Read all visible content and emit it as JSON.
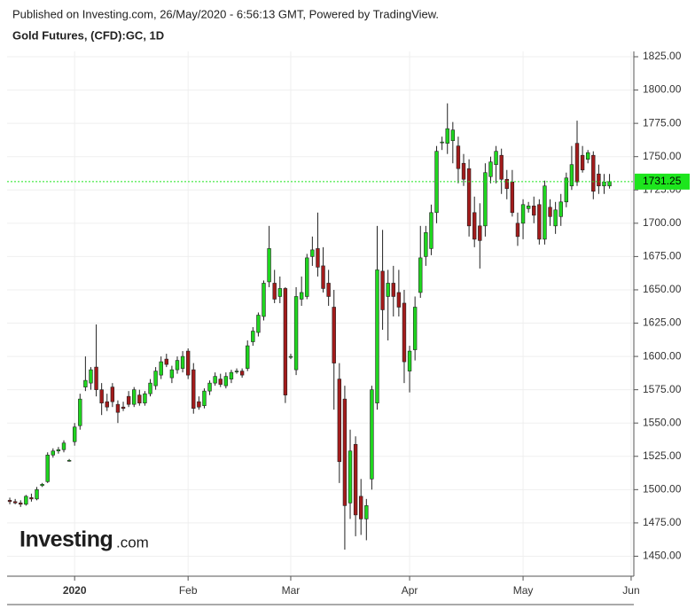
{
  "header": {
    "published": "Published on Investing.com, 26/May/2020 - 6:56:13 GMT, Powered by TradingView.",
    "title": "Gold Futures, (CFD):GC, 1D"
  },
  "watermark": {
    "brand": "Investing",
    "suffix": ".com"
  },
  "chart_data": {
    "type": "candlestick",
    "categories": [
      null,
      null,
      null,
      null,
      null,
      null,
      null,
      null,
      null,
      null,
      null,
      null,
      "2020",
      null,
      null,
      null,
      null,
      null,
      null,
      null,
      null,
      null,
      null,
      null,
      null,
      null,
      null,
      null,
      null,
      null,
      null,
      null,
      null,
      "Feb",
      null,
      null,
      null,
      null,
      null,
      null,
      null,
      null,
      null,
      null,
      null,
      null,
      null,
      null,
      null,
      null,
      null,
      null,
      "Mar",
      null,
      null,
      null,
      null,
      null,
      null,
      null,
      null,
      null,
      null,
      null,
      null,
      null,
      null,
      null,
      null,
      null,
      null,
      null,
      null,
      null,
      "Apr",
      null,
      null,
      null,
      null,
      null,
      null,
      null,
      null,
      null,
      null,
      null,
      null,
      null,
      null,
      null,
      null,
      null,
      null,
      null,
      null,
      "May",
      null,
      null,
      null,
      null,
      null,
      null,
      null,
      null,
      null,
      null,
      null,
      null,
      null,
      null,
      null,
      null,
      null,
      null,
      null,
      "Jun"
    ],
    "open": [
      1492,
      1491,
      1490,
      1489,
      1494,
      1493,
      1503,
      1506,
      1526,
      1529,
      1530,
      1522,
      1536,
      1548,
      1577,
      1580,
      1592,
      1575,
      1566,
      1577,
      1564,
      1562,
      1570,
      1564,
      1571,
      1565,
      1572,
      1578,
      1586,
      1598,
      1584,
      1590,
      1591,
      1604,
      1590,
      1566,
      1563,
      1574,
      1580,
      1583,
      1578,
      1583,
      1589,
      1589,
      1591,
      1611,
      1618,
      1630,
      1656,
      1655,
      1645,
      1651,
      1600,
      1590,
      1643,
      1645,
      1675,
      1681,
      1668,
      1655,
      1637,
      1583,
      1568,
      1490,
      1534,
      1495,
      1478,
      1508,
      1565,
      1664,
      1645,
      1655,
      1648,
      1640,
      1589,
      1605,
      1648,
      1675,
      1681,
      1708,
      1761,
      1760,
      1762,
      1758,
      1745,
      1741,
      1708,
      1698,
      1698,
      1735,
      1744,
      1751,
      1733,
      1731,
      1700,
      1700,
      1711,
      1713,
      1714,
      1688,
      1712,
      1698,
      1705,
      1716,
      1728,
      1760,
      1751,
      1748,
      1751,
      1737,
      1728,
      1728,
      null,
      null,
      null,
      null
    ],
    "high": [
      1494,
      1493,
      1492,
      1496,
      1497,
      1502,
      1505,
      1528,
      1531,
      1532,
      1537,
      1523,
      1550,
      1572,
      1600,
      1592,
      1624,
      1580,
      1572,
      1580,
      1567,
      1566,
      1574,
      1577,
      1575,
      1574,
      1583,
      1592,
      1600,
      1602,
      1593,
      1600,
      1604,
      1606,
      1595,
      1570,
      1576,
      1582,
      1588,
      1587,
      1588,
      1590,
      1591,
      1591,
      1612,
      1622,
      1633,
      1657,
      1698,
      1665,
      1660,
      1652,
      1602,
      1652,
      1660,
      1677,
      1690,
      1708,
      1682,
      1665,
      1650,
      1595,
      1578,
      1545,
      1540,
      1508,
      1493,
      1578,
      1698,
      1695,
      1665,
      1668,
      1665,
      1650,
      1608,
      1645,
      1698,
      1698,
      1714,
      1758,
      1765,
      1790,
      1776,
      1765,
      1752,
      1748,
      1720,
      1715,
      1745,
      1750,
      1758,
      1756,
      1740,
      1740,
      1708,
      1718,
      1716,
      1720,
      1718,
      1732,
      1718,
      1716,
      1722,
      1738,
      1758,
      1777,
      1758,
      1755,
      1754,
      1744,
      1737,
      1737,
      null,
      null,
      null,
      null
    ],
    "low": [
      1489,
      1489,
      1487,
      1488,
      1491,
      1492,
      1502,
      1505,
      1524,
      1527,
      1528,
      1521,
      1533,
      1545,
      1574,
      1575,
      1570,
      1556,
      1559,
      1562,
      1550,
      1559,
      1562,
      1562,
      1563,
      1563,
      1570,
      1575,
      1583,
      1592,
      1580,
      1587,
      1588,
      1583,
      1557,
      1560,
      1561,
      1571,
      1578,
      1577,
      1576,
      1580,
      1587,
      1584,
      1589,
      1608,
      1615,
      1627,
      1652,
      1640,
      1640,
      1565,
      1598,
      1586,
      1638,
      1643,
      1668,
      1660,
      1648,
      1638,
      1560,
      1505,
      1455,
      1478,
      1465,
      1466,
      1462,
      1500,
      1560,
      1620,
      1612,
      1630,
      1630,
      1580,
      1573,
      1597,
      1644,
      1668,
      1676,
      1700,
      1755,
      1752,
      1745,
      1730,
      1728,
      1690,
      1682,
      1666,
      1690,
      1730,
      1730,
      1722,
      1718,
      1705,
      1683,
      1688,
      1708,
      1700,
      1684,
      1684,
      1698,
      1692,
      1698,
      1712,
      1725,
      1728,
      1738,
      1745,
      1718,
      1722,
      1722,
      1726,
      null,
      null,
      null,
      null
    ],
    "close": [
      1491,
      1490,
      1489,
      1495,
      1493,
      1500,
      1504,
      1526,
      1529,
      1530,
      1535,
      1522,
      1547,
      1568,
      1582,
      1590,
      1575,
      1565,
      1562,
      1566,
      1558,
      1561,
      1564,
      1575,
      1565,
      1572,
      1580,
      1589,
      1596,
      1594,
      1590,
      1597,
      1600,
      1586,
      1561,
      1562,
      1574,
      1580,
      1585,
      1579,
      1585,
      1588,
      1589,
      1586,
      1608,
      1619,
      1631,
      1655,
      1681,
      1643,
      1651,
      1571,
      1600,
      1645,
      1648,
      1674,
      1680,
      1667,
      1651,
      1645,
      1595,
      1521,
      1488,
      1529,
      1481,
      1478,
      1488,
      1575,
      1665,
      1635,
      1655,
      1645,
      1637,
      1596,
      1604,
      1637,
      1674,
      1693,
      1708,
      1754,
      1761,
      1771,
      1770,
      1741,
      1733,
      1698,
      1688,
      1687,
      1738,
      1746,
      1754,
      1733,
      1726,
      1708,
      1690,
      1714,
      1713,
      1706,
      1688,
      1728,
      1705,
      1710,
      1716,
      1734,
      1744,
      1731,
      1740,
      1753,
      1724,
      1728,
      1731,
      1731.25,
      null,
      null,
      null,
      null
    ],
    "up_color": "#1fd61f",
    "down_color": "#a31b1b",
    "last_price_color": "#1de51d",
    "last_price": 1731.25,
    "ylim": [
      1435,
      1829
    ],
    "yticks": [
      {
        "value": 1450,
        "label": "1450.00"
      },
      {
        "value": 1475,
        "label": "1475.00"
      },
      {
        "value": 1500,
        "label": "1500.00"
      },
      {
        "value": 1525,
        "label": "1525.00"
      },
      {
        "value": 1550,
        "label": "1550.00"
      },
      {
        "value": 1575,
        "label": "1575.00"
      },
      {
        "value": 1600,
        "label": "1600.00"
      },
      {
        "value": 1625,
        "label": "1625.00"
      },
      {
        "value": 1650,
        "label": "1650.00"
      },
      {
        "value": 1675,
        "label": "1675.00"
      },
      {
        "value": 1700,
        "label": "1700.00"
      },
      {
        "value": 1725,
        "label": "1725.00"
      },
      {
        "value": 1750,
        "label": "1750.00"
      },
      {
        "value": 1775,
        "label": "1775.00"
      },
      {
        "value": 1800,
        "label": "1800.00"
      },
      {
        "value": 1825,
        "label": "1825.00"
      }
    ],
    "grid": true
  }
}
